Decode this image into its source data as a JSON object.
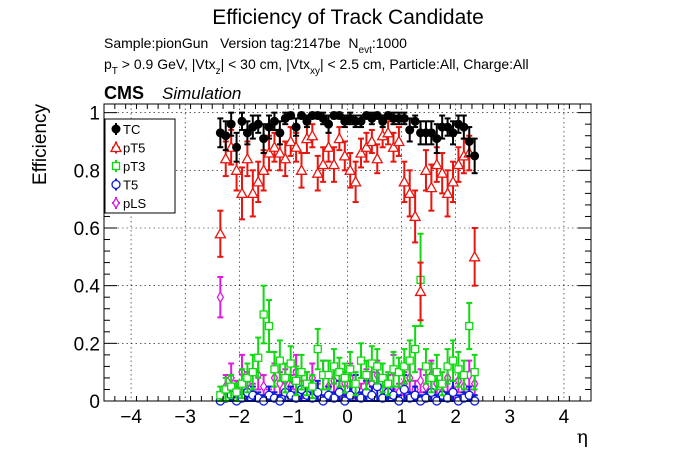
{
  "header": {
    "title": "Efficiency of Track Candidate",
    "sample_line": "Sample:pionGun   Version tag:2147be  N",
    "sample_sub": "evt",
    "sample_tail": ":1000",
    "cuts_p": "p",
    "cuts_p_sub": "T",
    "cuts_a": " > 0.9 GeV, |Vtx",
    "cuts_a_sub": "z",
    "cuts_b": "| < 30 cm, |Vtx",
    "cuts_b_sub": "xy",
    "cuts_c": "| < 2.5 cm, Particle:All, Charge:All",
    "cms": "CMS",
    "simulation": "Simulation"
  },
  "chart_data": {
    "type": "scatter",
    "xlabel": "η",
    "ylabel": "Efficiency",
    "xlim": [
      -4.5,
      4.5
    ],
    "ylim": [
      0,
      1.03
    ],
    "xticks": [
      -4,
      -3,
      -2,
      -1,
      0,
      1,
      2,
      3,
      4
    ],
    "xtick_labels": [
      "−4",
      "−3",
      "−2",
      "−1",
      "0",
      "1",
      "2",
      "3",
      "4"
    ],
    "yticks": [
      0,
      0.2,
      0.4,
      0.6,
      0.8,
      1
    ],
    "ytick_labels": [
      "0",
      "0.2",
      "0.4",
      "0.6",
      "0.8",
      "1"
    ],
    "grid": true,
    "legend_position": "top-left",
    "x": [
      -2.35,
      -2.25,
      -2.15,
      -2.05,
      -1.95,
      -1.85,
      -1.75,
      -1.65,
      -1.55,
      -1.45,
      -1.35,
      -1.25,
      -1.15,
      -1.05,
      -0.95,
      -0.85,
      -0.75,
      -0.65,
      -0.55,
      -0.45,
      -0.35,
      -0.25,
      -0.15,
      -0.05,
      0.05,
      0.15,
      0.25,
      0.35,
      0.45,
      0.55,
      0.65,
      0.75,
      0.85,
      0.95,
      1.05,
      1.15,
      1.25,
      1.35,
      1.45,
      1.55,
      1.65,
      1.75,
      1.85,
      1.95,
      2.05,
      2.15,
      2.25,
      2.35
    ],
    "series": [
      {
        "name": "TC",
        "color": "#000000",
        "marker": "filled-circle",
        "values": [
          0.93,
          0.92,
          0.96,
          0.88,
          0.97,
          0.93,
          0.95,
          0.96,
          0.91,
          0.95,
          0.97,
          0.93,
          0.98,
          0.99,
          0.95,
          0.99,
          0.97,
          0.99,
          0.99,
          0.98,
          0.96,
          0.99,
          0.99,
          0.97,
          0.98,
          0.97,
          0.97,
          0.99,
          0.98,
          0.99,
          0.97,
          0.99,
          0.98,
          0.98,
          0.98,
          0.94,
          0.97,
          0.93,
          0.93,
          0.93,
          0.91,
          0.95,
          0.95,
          0.93,
          0.96,
          0.95,
          0.9,
          0.85
        ],
        "errors": [
          0.05,
          0.05,
          0.04,
          0.05,
          0.03,
          0.04,
          0.04,
          0.03,
          0.05,
          0.04,
          0.03,
          0.04,
          0.02,
          0.01,
          0.03,
          0.01,
          0.02,
          0.01,
          0.01,
          0.02,
          0.03,
          0.01,
          0.01,
          0.02,
          0.02,
          0.02,
          0.02,
          0.01,
          0.02,
          0.01,
          0.02,
          0.01,
          0.02,
          0.02,
          0.02,
          0.04,
          0.02,
          0.04,
          0.04,
          0.04,
          0.05,
          0.04,
          0.03,
          0.04,
          0.03,
          0.04,
          0.05,
          0.06
        ]
      },
      {
        "name": "pT5",
        "color": "#e8150e",
        "marker": "open-triangle",
        "values": [
          0.58,
          0.84,
          0.88,
          0.8,
          0.72,
          0.84,
          0.72,
          0.76,
          0.8,
          0.86,
          0.88,
          0.86,
          0.84,
          0.9,
          0.88,
          0.8,
          0.91,
          0.92,
          0.79,
          0.82,
          0.88,
          0.82,
          0.91,
          0.85,
          0.8,
          0.76,
          0.86,
          0.88,
          0.9,
          0.84,
          0.92,
          0.93,
          0.88,
          0.9,
          0.76,
          0.72,
          0.64,
          0.38,
          0.8,
          0.74,
          0.82,
          0.79,
          0.72,
          0.76,
          0.82,
          0.85,
          0.86,
          0.5
        ],
        "errors": [
          0.08,
          0.06,
          0.06,
          0.07,
          0.09,
          0.06,
          0.08,
          0.07,
          0.07,
          0.06,
          0.05,
          0.06,
          0.06,
          0.05,
          0.05,
          0.06,
          0.05,
          0.04,
          0.06,
          0.06,
          0.05,
          0.06,
          0.04,
          0.05,
          0.06,
          0.07,
          0.05,
          0.05,
          0.04,
          0.05,
          0.04,
          0.04,
          0.05,
          0.05,
          0.07,
          0.08,
          0.09,
          0.1,
          0.07,
          0.08,
          0.06,
          0.07,
          0.08,
          0.07,
          0.06,
          0.06,
          0.06,
          0.1
        ]
      },
      {
        "name": "pT3",
        "color": "#11d911",
        "marker": "open-square",
        "values": [
          0.02,
          0.04,
          0.05,
          0.03,
          0.06,
          0.08,
          0.1,
          0.15,
          0.3,
          0.26,
          0.11,
          0.14,
          0.08,
          0.13,
          0.07,
          0.1,
          0.06,
          0.05,
          0.18,
          0.09,
          0.09,
          0.12,
          0.1,
          0.08,
          0.11,
          0.06,
          0.14,
          0.09,
          0.13,
          0.12,
          0.08,
          0.06,
          0.11,
          0.1,
          0.12,
          0.14,
          0.18,
          0.42,
          0.12,
          0.08,
          0.1,
          0.06,
          0.12,
          0.14,
          0.11,
          0.09,
          0.26,
          0.1
        ],
        "errors": [
          0.03,
          0.04,
          0.04,
          0.03,
          0.05,
          0.05,
          0.06,
          0.07,
          0.1,
          0.09,
          0.06,
          0.07,
          0.05,
          0.06,
          0.05,
          0.06,
          0.04,
          0.04,
          0.07,
          0.05,
          0.05,
          0.06,
          0.05,
          0.05,
          0.06,
          0.04,
          0.06,
          0.05,
          0.06,
          0.06,
          0.05,
          0.04,
          0.06,
          0.05,
          0.06,
          0.07,
          0.08,
          0.16,
          0.06,
          0.05,
          0.06,
          0.04,
          0.06,
          0.07,
          0.06,
          0.05,
          0.08,
          0.06
        ]
      },
      {
        "name": "T5",
        "color": "#0a1bdb",
        "marker": "open-circle",
        "values": [
          0.0,
          0.01,
          0.02,
          0.0,
          0.01,
          0.03,
          0.02,
          0.01,
          0.0,
          0.02,
          0.01,
          0.0,
          0.03,
          0.02,
          0.01,
          0.04,
          0.02,
          0.01,
          0.03,
          0.0,
          0.02,
          0.01,
          0.03,
          0.0,
          0.02,
          0.04,
          0.01,
          0.03,
          0.02,
          0.05,
          0.01,
          0.03,
          0.02,
          0.0,
          0.04,
          0.01,
          0.02,
          0.0,
          0.01,
          0.03,
          0.0,
          0.02,
          0.01,
          0.03,
          0.0,
          0.01,
          0.02,
          0.0
        ],
        "errors": [
          0.02,
          0.02,
          0.03,
          0.02,
          0.02,
          0.04,
          0.03,
          0.02,
          0.02,
          0.03,
          0.02,
          0.02,
          0.04,
          0.03,
          0.02,
          0.05,
          0.03,
          0.02,
          0.04,
          0.02,
          0.03,
          0.02,
          0.04,
          0.02,
          0.03,
          0.05,
          0.02,
          0.04,
          0.03,
          0.06,
          0.02,
          0.04,
          0.03,
          0.02,
          0.05,
          0.02,
          0.03,
          0.02,
          0.02,
          0.04,
          0.02,
          0.03,
          0.02,
          0.04,
          0.02,
          0.02,
          0.03,
          0.02
        ]
      },
      {
        "name": "pLS",
        "color": "#de1bde",
        "marker": "open-diamond",
        "values": [
          0.36,
          0.05,
          0.08,
          0.04,
          0.1,
          0.06,
          0.03,
          0.09,
          0.05,
          0.02,
          0.08,
          0.06,
          0.07,
          0.05,
          0.1,
          0.04,
          0.06,
          0.08,
          0.03,
          0.09,
          0.05,
          0.07,
          0.04,
          0.06,
          0.08,
          0.05,
          0.03,
          0.07,
          0.06,
          0.09,
          0.04,
          0.05,
          0.1,
          0.03,
          0.06,
          0.08,
          0.04,
          0.07,
          0.05,
          0.09,
          0.06,
          0.03,
          0.08,
          0.04,
          0.07,
          0.05,
          0.09,
          0.06
        ],
        "errors": [
          0.07,
          0.04,
          0.05,
          0.03,
          0.06,
          0.04,
          0.03,
          0.05,
          0.04,
          0.02,
          0.05,
          0.04,
          0.04,
          0.04,
          0.06,
          0.03,
          0.04,
          0.05,
          0.03,
          0.05,
          0.04,
          0.04,
          0.03,
          0.04,
          0.05,
          0.04,
          0.03,
          0.04,
          0.04,
          0.05,
          0.03,
          0.04,
          0.06,
          0.03,
          0.04,
          0.05,
          0.03,
          0.04,
          0.04,
          0.05,
          0.04,
          0.03,
          0.05,
          0.03,
          0.04,
          0.04,
          0.05,
          0.04
        ]
      }
    ]
  }
}
